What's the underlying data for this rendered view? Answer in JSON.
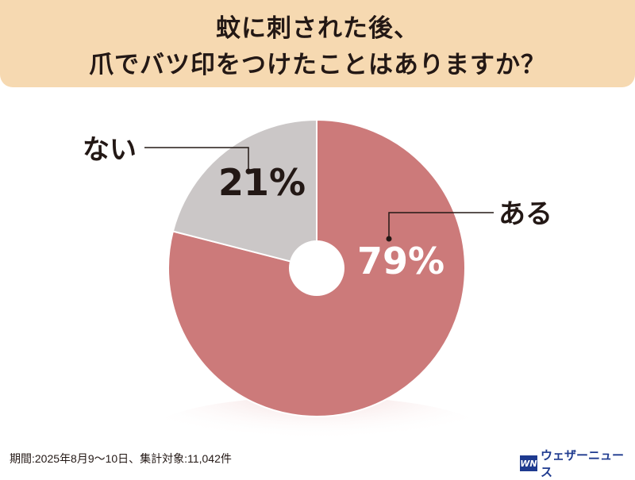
{
  "chart_data": {
    "type": "pie",
    "title_lines": [
      "蚊に刺された後、",
      "爪でバツ印をつけたことはありますか？"
    ],
    "slices": [
      {
        "label": "ある",
        "value": 79,
        "value_label": "79%",
        "color": "#cc7a7a",
        "text_color": "#ffffff"
      },
      {
        "label": "ない",
        "value": 21,
        "value_label": "21%",
        "color": "#cbc7c7",
        "text_color": "#231815"
      }
    ],
    "donut_hole": true
  },
  "footnote": "期間:2025年8月9〜10日、集計対象:11,042件",
  "brand": {
    "logo_text": "WN",
    "name": "ウェザーニュース",
    "color": "#1e3a8f"
  }
}
